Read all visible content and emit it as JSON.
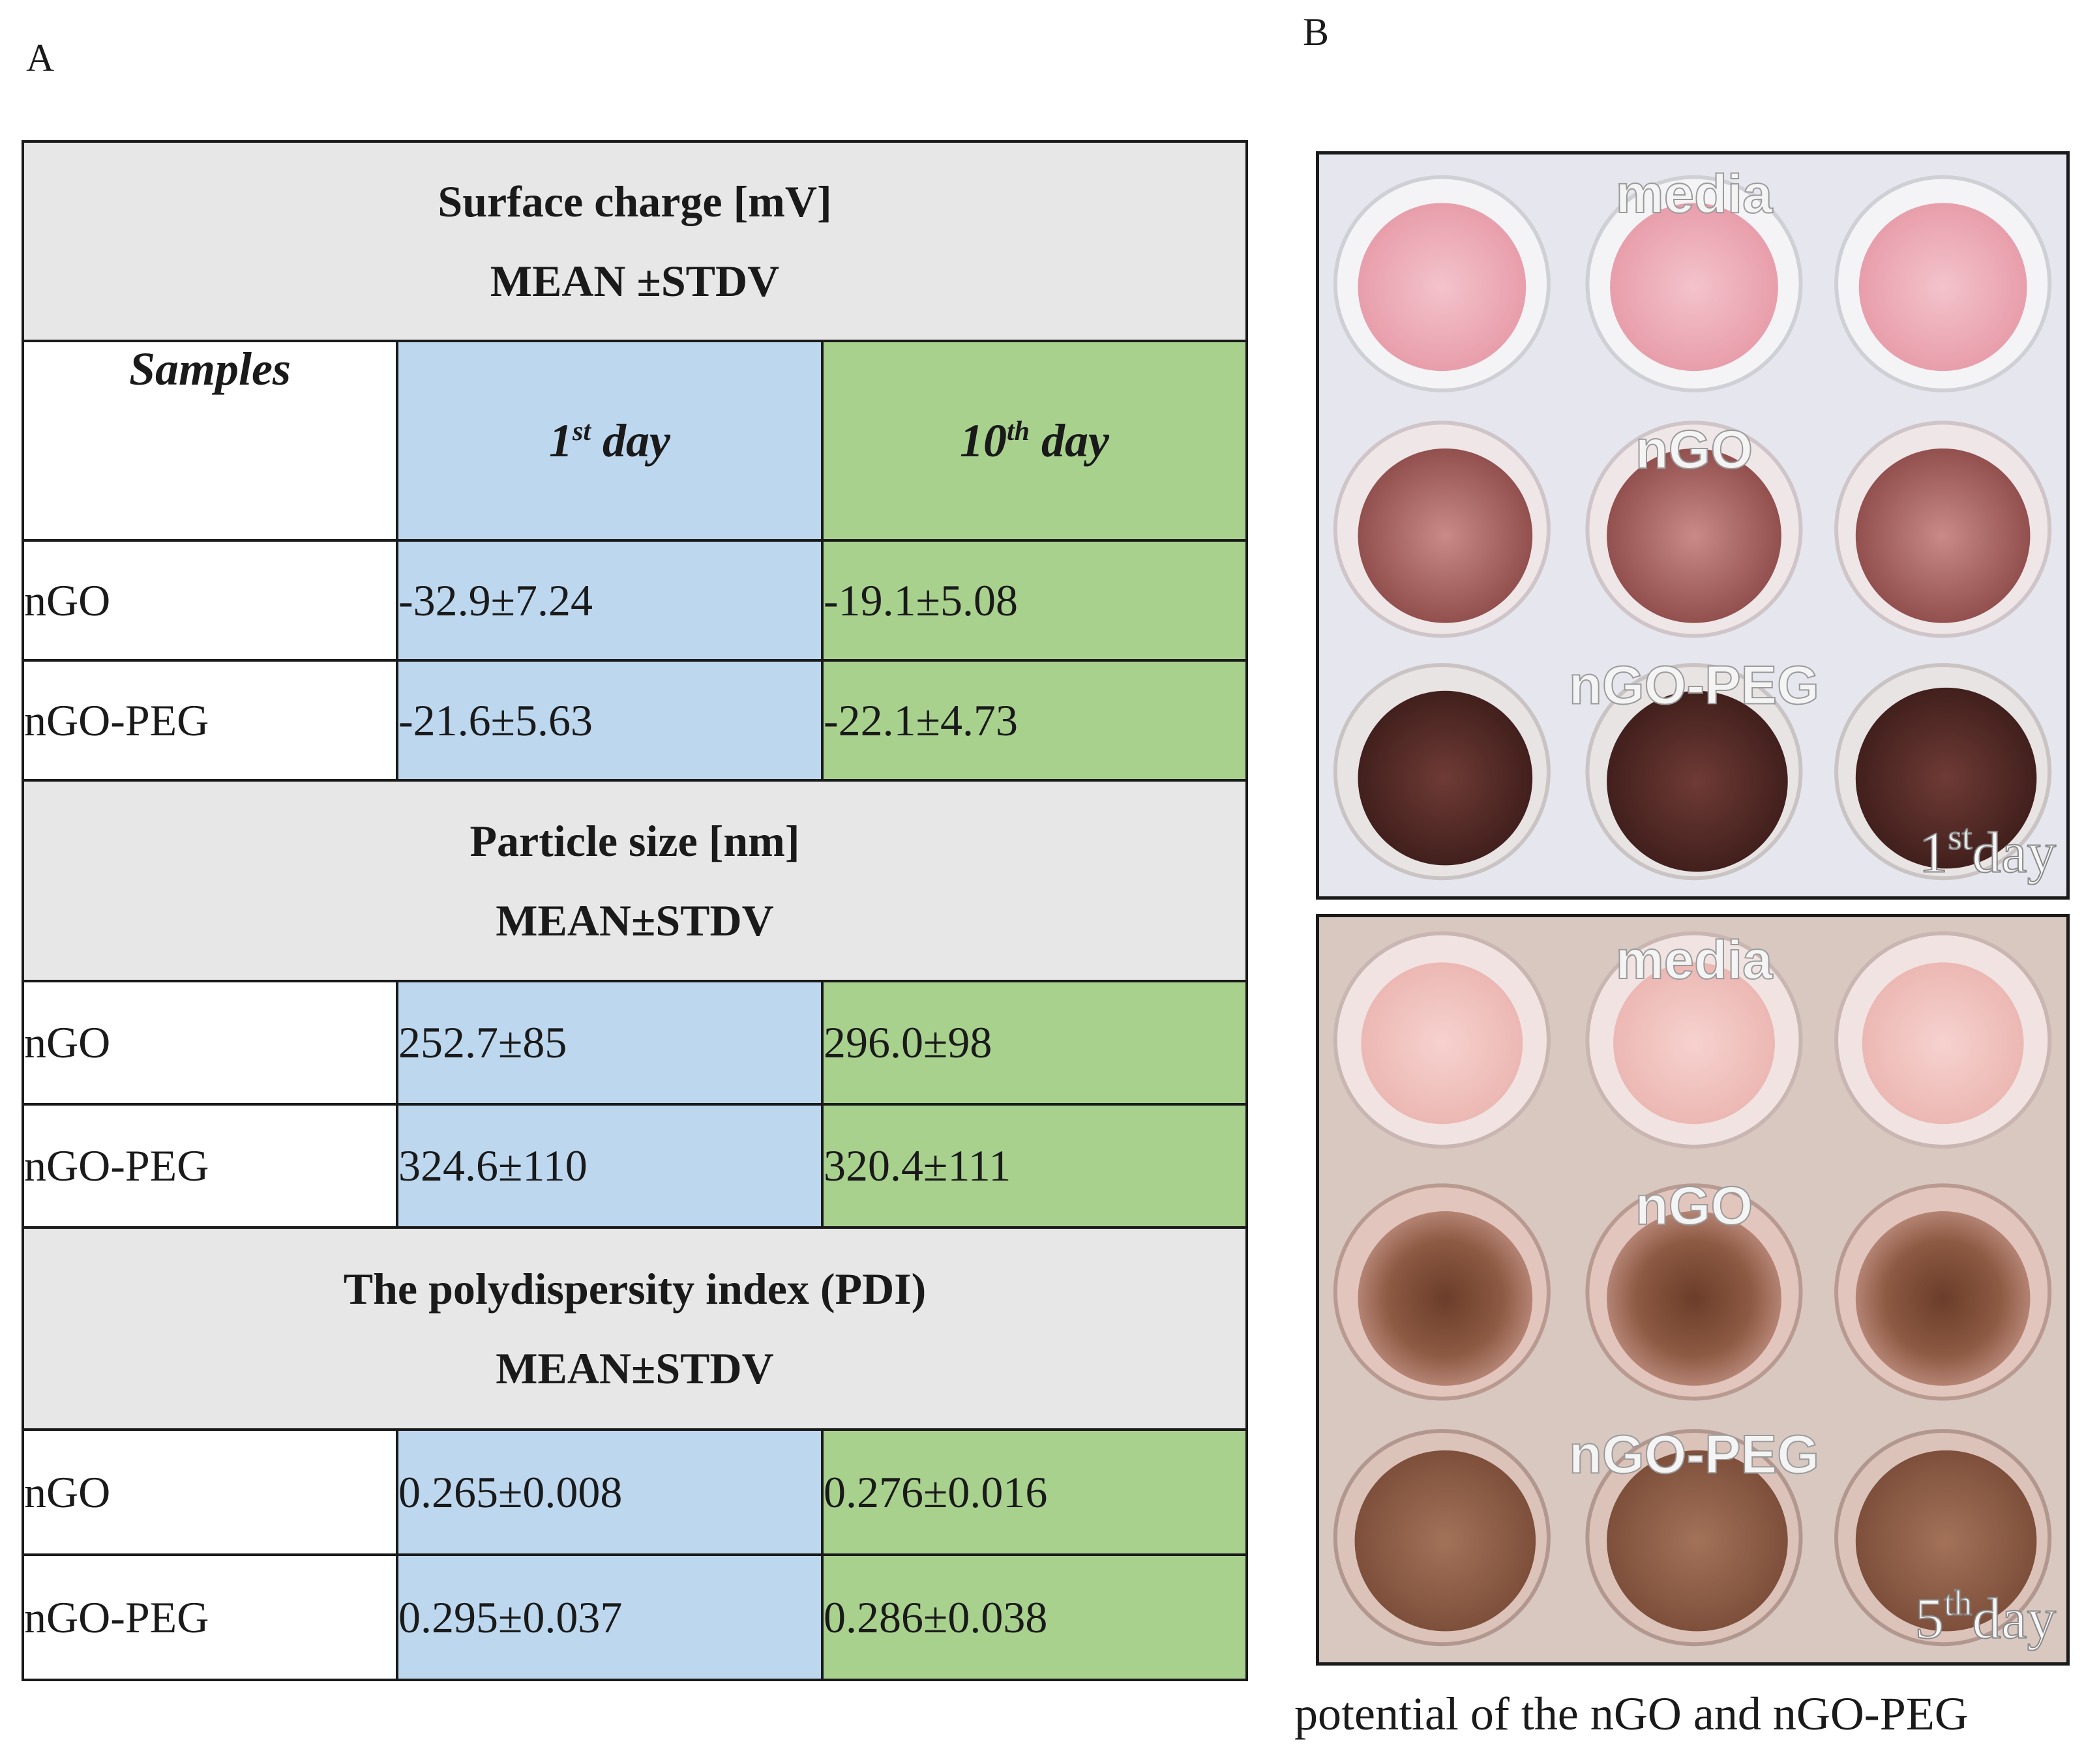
{
  "panels": {
    "a": "A",
    "b": "B"
  },
  "table": {
    "sections": [
      {
        "title": "Surface charge [mV]",
        "subtitle": "MEAN ±STDV",
        "rows": [
          {
            "name": "nGO",
            "day1": "-32.9±7.24",
            "day10": "-19.1±5.08"
          },
          {
            "name": "nGO-PEG",
            "day1": "-21.6±5.63",
            "day10": "-22.1±4.73"
          }
        ]
      },
      {
        "title": "Particle size [nm]",
        "subtitle": "MEAN±STDV",
        "rows": [
          {
            "name": "nGO",
            "day1": "252.7±85",
            "day10": "296.0±98"
          },
          {
            "name": "nGO-PEG",
            "day1": "324.6±110",
            "day10": "320.4±111"
          }
        ]
      },
      {
        "title": "The polydispersity index (PDI)",
        "subtitle": "MEAN±STDV",
        "rows": [
          {
            "name": "nGO",
            "day1": "0.265±0.008",
            "day10": "0.276±0.016"
          },
          {
            "name": "nGO-PEG",
            "day1": "0.295±0.037",
            "day10": "0.286±0.038"
          }
        ]
      }
    ],
    "header": {
      "samples": "Samples",
      "day1_num": "1",
      "day1_sup": "st",
      "day1_word": " day",
      "day10_num": "10",
      "day10_sup": "th",
      "day10_word": " day"
    }
  },
  "photos": {
    "top": {
      "label_media": "media",
      "label_ngo": "nGO",
      "label_ngopeg": "nGO-PEG",
      "day_num": "1",
      "day_sup": "st",
      "day_word": "day"
    },
    "bottom": {
      "label_media": "media",
      "label_ngo": "nGO",
      "label_ngopeg": "nGO-PEG",
      "day_num": "5",
      "day_sup": "th",
      "day_word": "day"
    }
  },
  "caption": "potential of the nGO and nGO-PEG",
  "colors": {
    "day1_fill": "#bdd7ee",
    "day10_fill": "#a9d18e",
    "header_fill": "#e7e7e7"
  }
}
